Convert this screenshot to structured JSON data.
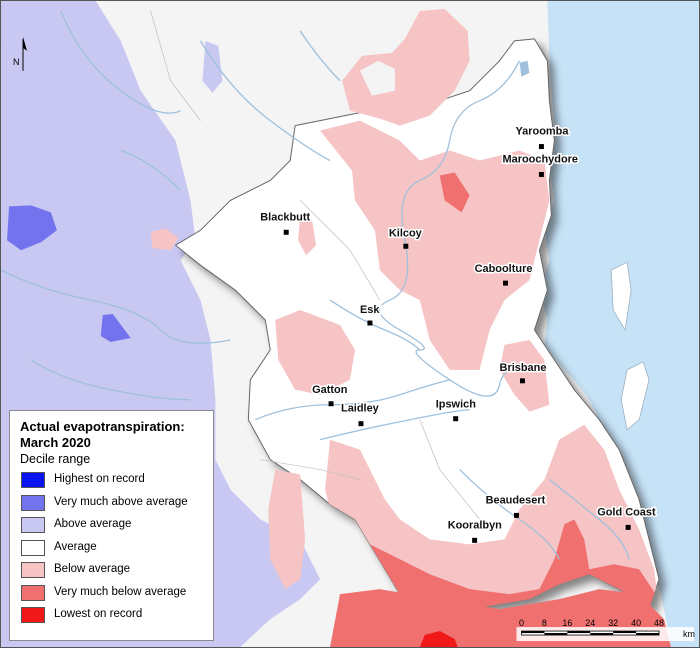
{
  "title": "Actual evapotranspiration:\nMarch 2020",
  "subtitle": "Decile range",
  "north_label": "N",
  "legend": [
    {
      "label": "Highest on record",
      "color": "#0a14f0"
    },
    {
      "label": "Very much above average",
      "color": "#7373ee"
    },
    {
      "label": "Above average",
      "color": "#c8c8f2"
    },
    {
      "label": "Average",
      "color": "#ffffff"
    },
    {
      "label": "Below average",
      "color": "#f6c4c4"
    },
    {
      "label": "Very much below average",
      "color": "#f07070"
    },
    {
      "label": "Lowest on record",
      "color": "#f01818"
    }
  ],
  "towns": [
    "Yaroomba",
    "Maroochydore",
    "Blackbutt",
    "Kilcoy",
    "Caboolture",
    "Esk",
    "Brisbane",
    "Gatton",
    "Laidley",
    "Ipswich",
    "Beaudesert",
    "Gold Coast",
    "Kooralbyn"
  ],
  "scale": {
    "ticks": [
      "0",
      "8",
      "16",
      "24",
      "32",
      "40",
      "48"
    ],
    "unit": "km"
  },
  "colors": {
    "ocean": "#c6e2f6",
    "river": "#9fc0dc",
    "boundary": "#777777",
    "outside_area": "#f4f4f4"
  }
}
